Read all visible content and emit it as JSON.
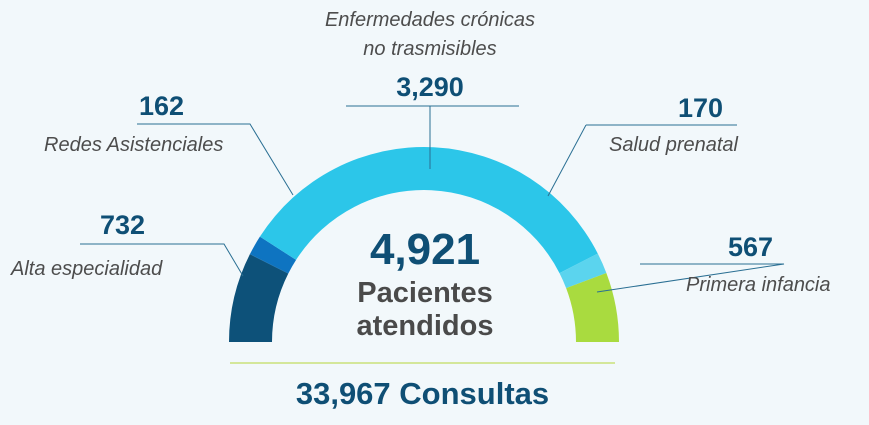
{
  "chart_data": {
    "type": "pie",
    "style": "semicircle-gauge",
    "total_value": "4,921",
    "total_label": "Pacientes atendidos",
    "footer": "33,967 Consultas",
    "slices": [
      {
        "label": "Alta especialidad",
        "value": 732,
        "display": "732",
        "color": "#0d5179"
      },
      {
        "label": "Redes Asistenciales",
        "value": 162,
        "display": "162",
        "color": "#0e74c1"
      },
      {
        "label": "Enfermedades crónicas no trasmisibles",
        "value": 3290,
        "display": "3,290",
        "color": "#2cc6e9"
      },
      {
        "label": "Salud prenatal",
        "value": 170,
        "display": "170",
        "color": "#5bd4ee"
      },
      {
        "label": "Primera infancia",
        "value": 567,
        "display": "567",
        "color": "#a9db3f"
      }
    ]
  },
  "labels": {
    "alta": {
      "value": "732",
      "name": "Alta especialidad"
    },
    "redes": {
      "value": "162",
      "name": "Redes Asistenciales"
    },
    "cronicas": {
      "value": "3,290",
      "name_line1": "Enfermedades crónicas",
      "name_line2": "no trasmisibles"
    },
    "prenatal": {
      "value": "170",
      "name": "Salud prenatal"
    },
    "infancia": {
      "value": "567",
      "name": "Primera infancia"
    }
  },
  "summary": {
    "total": "4,921",
    "total_label_line1": "Pacientes",
    "total_label_line2": "atendidos",
    "consultas": "33,967 Consultas"
  }
}
